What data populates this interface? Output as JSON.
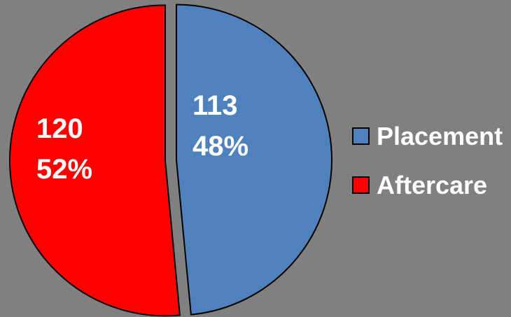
{
  "chart_data": {
    "type": "pie",
    "categories": [
      "Placement",
      "Aftercare"
    ],
    "values": [
      113,
      120
    ],
    "percent_labels": [
      "48%",
      "52%"
    ],
    "colors": [
      "#4f81bd",
      "#ff0000"
    ],
    "legend_position": "right",
    "exploded": true,
    "title": ""
  }
}
